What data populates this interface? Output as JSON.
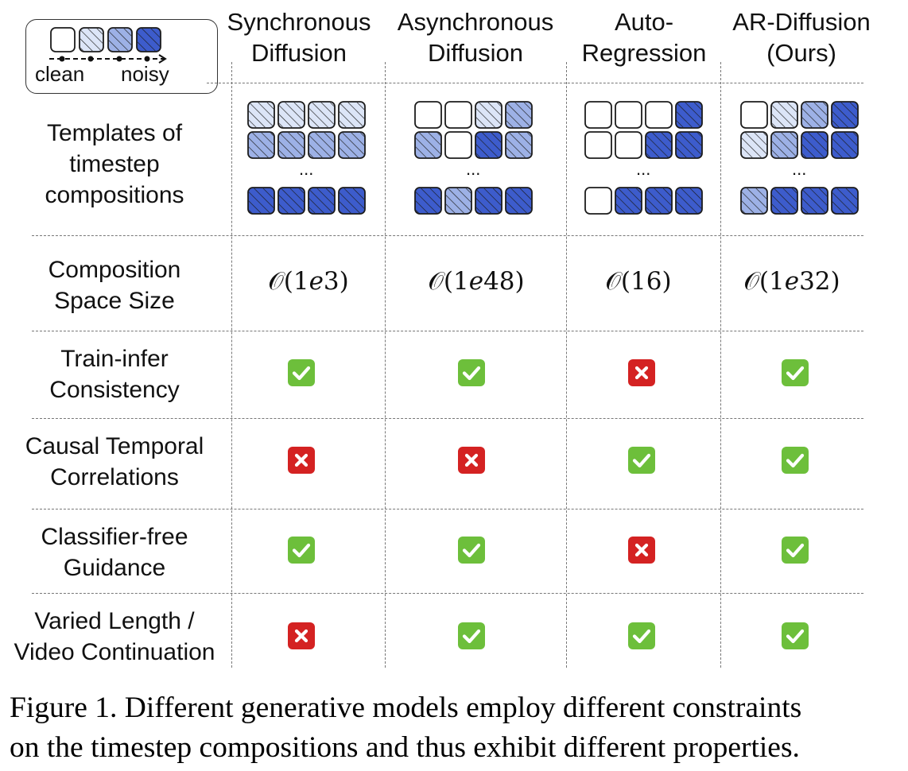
{
  "legend": {
    "clean_label": "clean",
    "noisy_label": "noisy"
  },
  "columns": [
    {
      "line1": "Synchronous",
      "line2": "Diffusion"
    },
    {
      "line1": "Asynchronous",
      "line2": "Diffusion"
    },
    {
      "line1": "Auto-",
      "line2": "Regression"
    },
    {
      "line1": "AR-Diffusion",
      "line2": "(Ours)"
    }
  ],
  "rows": {
    "templates": {
      "line1": "Templates of",
      "line2": "timestep",
      "line3": "compositions"
    },
    "space_size": {
      "line1": "Composition",
      "line2": "Space Size"
    },
    "train_infer": {
      "line1": "Train-infer",
      "line2": "Consistency"
    },
    "causal": {
      "line1": "Causal Temporal",
      "line2": "Correlations"
    },
    "cfg": {
      "line1": "Classifier-free",
      "line2": "Guidance"
    },
    "varied_length": {
      "line1": "Varied Length /",
      "line2": "Video Continuation"
    }
  },
  "ellipsis": "...",
  "space_sizes": [
    "𝒪(1𝑒3)",
    "𝒪(1𝑒48)",
    "𝒪(16)",
    "𝒪(1𝑒32)"
  ],
  "templates": [
    [
      [
        1,
        1,
        1,
        1
      ],
      [
        2,
        2,
        2,
        2
      ],
      [
        3,
        3,
        3,
        3
      ]
    ],
    [
      [
        0,
        0,
        1,
        2
      ],
      [
        2,
        0,
        3,
        2
      ],
      [
        3,
        2,
        3,
        3
      ]
    ],
    [
      [
        0,
        0,
        0,
        3
      ],
      [
        0,
        0,
        3,
        3
      ],
      [
        0,
        3,
        3,
        3
      ]
    ],
    [
      [
        0,
        1,
        2,
        3
      ],
      [
        1,
        2,
        3,
        3
      ],
      [
        2,
        3,
        3,
        3
      ]
    ]
  ],
  "properties": {
    "train_infer": [
      true,
      true,
      false,
      true
    ],
    "causal": [
      false,
      false,
      true,
      true
    ],
    "cfg": [
      true,
      true,
      false,
      true
    ],
    "varied_length": [
      false,
      true,
      true,
      true
    ]
  },
  "colors": {
    "noise_levels": [
      "#ffffff",
      "#dce5f7",
      "#9db1e6",
      "#3d5ccc"
    ],
    "tile_border": "#1c1c1c",
    "check_green": "#6dbf3b",
    "cross_red": "#d42222"
  },
  "caption": {
    "line1": "Figure 1. Different generative models employ different constraints",
    "line2": "on the timestep compositions and thus exhibit different properties."
  }
}
